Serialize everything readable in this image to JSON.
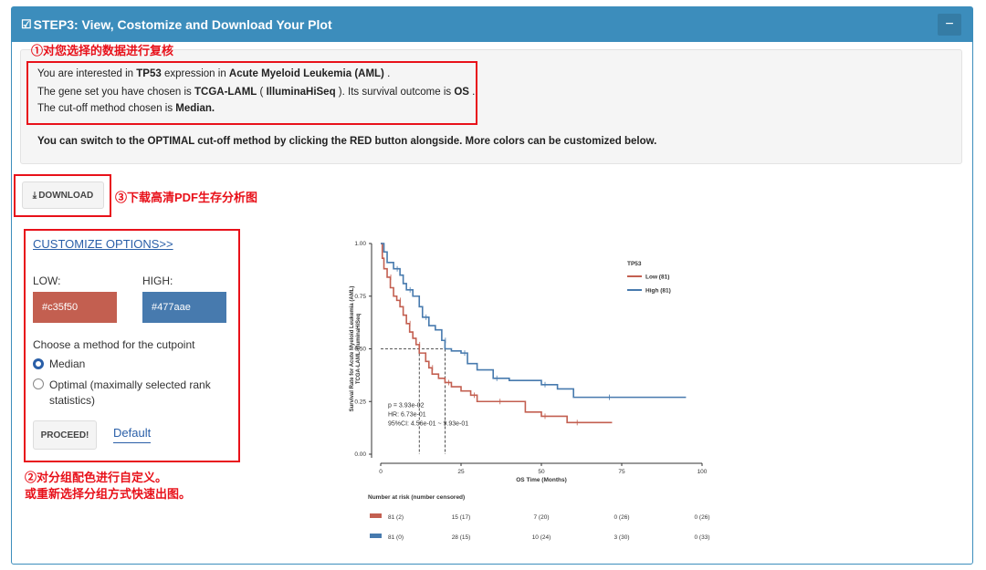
{
  "header": {
    "title": "STEP3: View, Costomize and Download Your Plot",
    "collapse_label": "−"
  },
  "annotations": {
    "review": "①对您选择的数据进行复核",
    "download": "③下载高清PDF生存分析图",
    "customize_1": "②对分组配色进行自定义。",
    "customize_2": "或重新选择分组方式快速出图。"
  },
  "info": {
    "l1_a": "You are interested in ",
    "l1_gene": "TP53",
    "l1_b": " expression in ",
    "l1_disease": "Acute Myeloid Leukemia (AML)",
    "l1_c": " .",
    "l2_a": "The gene set you have chosen is ",
    "l2_set": "TCGA-LAML",
    "l2_b": " ( ",
    "l2_platform": "IlluminaHiSeq",
    "l2_c": " ). Its survival outcome is ",
    "l2_outcome": "OS",
    "l2_d": " .",
    "l3_a": "The cut-off method chosen is ",
    "l3_method": "Median.",
    "l4": "You can switch to the OPTIMAL cut-off method by clicking the RED button alongside. More colors can be customized below."
  },
  "download_button": {
    "icon": "download-icon",
    "label": "DOWNLOAD"
  },
  "customize": {
    "link": "CUSTOMIZE OPTIONS>>",
    "low_label": "LOW:",
    "high_label": "HIGH:",
    "low_color": "#c35f50",
    "high_color": "#477aae",
    "method_label": "Choose a method for the cutpoint",
    "option_median": "Median",
    "option_optimal_1": "Optimal (maximally selected rank",
    "option_optimal_2": "statistics)",
    "selected": "Median",
    "proceed": "PROCEED!",
    "default": "Default"
  },
  "chart_data": {
    "type": "line",
    "subtype": "kaplan-meier",
    "xlabel": "OS Time (Months)",
    "ylabel_1": "Survival Rate for Acute Myeloid Leukemia (AML)",
    "ylabel_2": "TCGA-LAML-IlluminaHiSeq",
    "xlim": [
      0,
      100
    ],
    "ylim": [
      0,
      1
    ],
    "xticks": [
      0,
      25,
      50,
      75,
      100
    ],
    "yticks": [
      "0.00",
      "0.25",
      "0.50",
      "0.75",
      "1.00"
    ],
    "legend_title": "TP53",
    "legend_position": "right",
    "series": [
      {
        "name": "Low (81)",
        "color": "#c35f50",
        "x": [
          0,
          0.5,
          1,
          2,
          3,
          4,
          5,
          6,
          7,
          8,
          9,
          10,
          11,
          12,
          14,
          15,
          16,
          18,
          20,
          22,
          25,
          28,
          30,
          33,
          36,
          40,
          45,
          50,
          55,
          58,
          60,
          65,
          72
        ],
        "y": [
          1.0,
          0.93,
          0.88,
          0.84,
          0.79,
          0.75,
          0.73,
          0.7,
          0.66,
          0.62,
          0.58,
          0.55,
          0.52,
          0.48,
          0.44,
          0.41,
          0.38,
          0.36,
          0.34,
          0.32,
          0.3,
          0.28,
          0.25,
          0.25,
          0.25,
          0.25,
          0.2,
          0.18,
          0.18,
          0.15,
          0.15,
          0.15,
          0.15
        ]
      },
      {
        "name": "High (81)",
        "color": "#477aae",
        "x": [
          0,
          1,
          2,
          4,
          6,
          7,
          8,
          10,
          12,
          13,
          15,
          17,
          19,
          20,
          22,
          25,
          27,
          30,
          35,
          40,
          45,
          50,
          55,
          60,
          70,
          80,
          95
        ],
        "y": [
          1.0,
          0.96,
          0.91,
          0.88,
          0.85,
          0.81,
          0.78,
          0.75,
          0.7,
          0.65,
          0.61,
          0.59,
          0.54,
          0.5,
          0.49,
          0.48,
          0.43,
          0.4,
          0.36,
          0.35,
          0.35,
          0.33,
          0.31,
          0.27,
          0.27,
          0.27,
          0.27
        ]
      }
    ],
    "median_line_y": 0.5,
    "median_times": [
      12,
      20
    ],
    "stats": [
      "p = 3.93e-02",
      "HR: 6.73e-01",
      "95%CI: 4.56e-01 ~ 9.93e-01"
    ],
    "risk_table": {
      "title": "Number at risk (number censored)",
      "times": [
        0,
        25,
        50,
        75,
        100
      ],
      "rows": [
        {
          "color": "#c35f50",
          "values": [
            "81 (2)",
            "15 (17)",
            "7 (20)",
            "0 (26)",
            "0 (26)"
          ]
        },
        {
          "color": "#477aae",
          "values": [
            "81 (0)",
            "28 (15)",
            "10 (24)",
            "3 (30)",
            "0 (33)"
          ]
        }
      ]
    }
  }
}
